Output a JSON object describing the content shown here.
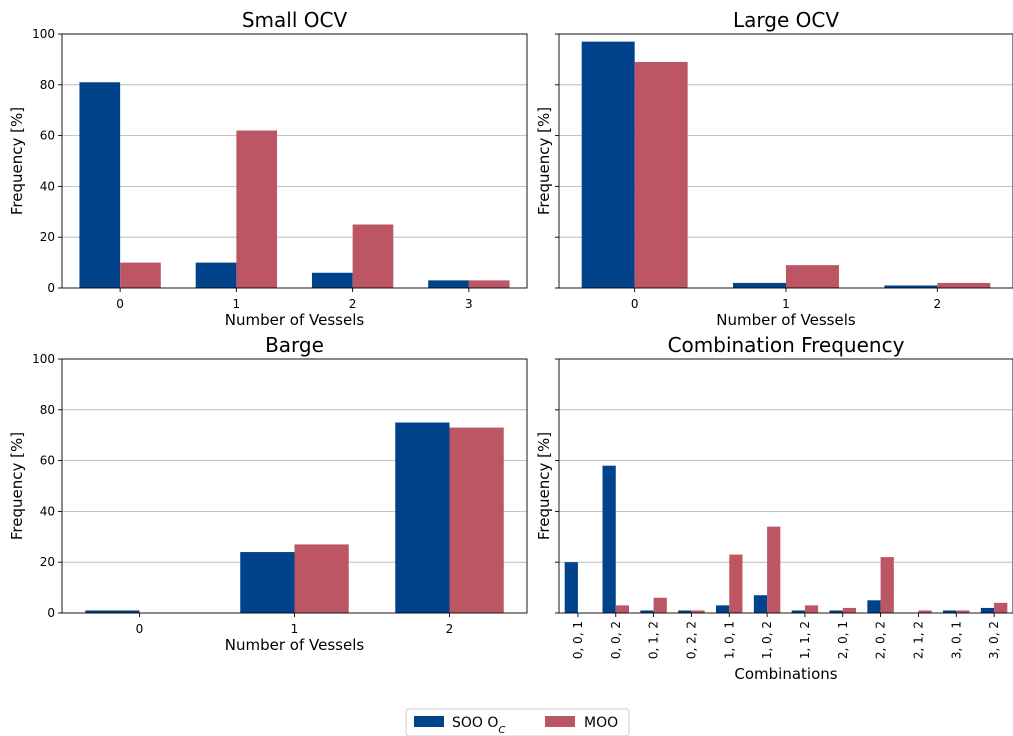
{
  "colors": {
    "soo": "#01438a",
    "moo": "#bd5664",
    "grid": "#b0b0b0",
    "axis": "#000000"
  },
  "legend": {
    "soo_label": "SOO O",
    "soo_subscript": "C",
    "moo_label": "MOO",
    "placement": "bottom-center"
  },
  "chart_data": [
    {
      "type": "bar",
      "title": "Small OCV",
      "xlabel": "Number of Vessels",
      "ylabel": "Frequency [%]",
      "ylim": [
        0,
        100
      ],
      "yticks": [
        "0",
        "20",
        "40",
        "60",
        "80",
        "100"
      ],
      "grid": "y",
      "categories": [
        "0",
        "1",
        "2",
        "3"
      ],
      "series": [
        {
          "name": "SOO O_C",
          "values": [
            81,
            10,
            6,
            3
          ]
        },
        {
          "name": "MOO",
          "values": [
            10,
            62,
            25,
            3
          ]
        }
      ]
    },
    {
      "type": "bar",
      "title": "Large OCV",
      "xlabel": "Number of Vessels",
      "ylabel": "Frequency [%]",
      "ylim": [
        0,
        100
      ],
      "yticks": [],
      "grid": "y",
      "categories": [
        "0",
        "1",
        "2"
      ],
      "series": [
        {
          "name": "SOO O_C",
          "values": [
            97,
            2,
            1
          ]
        },
        {
          "name": "MOO",
          "values": [
            89,
            9,
            2
          ]
        }
      ]
    },
    {
      "type": "bar",
      "title": "Barge",
      "xlabel": "Number of Vessels",
      "ylabel": "Frequency [%]",
      "ylim": [
        0,
        100
      ],
      "yticks": [
        "0",
        "20",
        "40",
        "60",
        "80",
        "100"
      ],
      "grid": "y",
      "categories": [
        "0",
        "1",
        "2"
      ],
      "series": [
        {
          "name": "SOO O_C",
          "values": [
            1,
            24,
            75
          ]
        },
        {
          "name": "MOO",
          "values": [
            0,
            27,
            73
          ]
        }
      ]
    },
    {
      "type": "bar",
      "title": "Combination Frequency",
      "xlabel": "Combinations",
      "ylabel": "Frequency [%]",
      "ylim": [
        0,
        100
      ],
      "yticks": [],
      "grid": "y",
      "categories": [
        "0, 0, 1",
        "0, 0, 2",
        "0, 1, 2",
        "0, 2, 2",
        "1, 0, 1",
        "1, 0, 2",
        "1, 1, 2",
        "2, 0, 1",
        "2, 0, 2",
        "2, 1, 2",
        "3, 0, 1",
        "3, 0, 2"
      ],
      "series": [
        {
          "name": "SOO O_C",
          "values": [
            20,
            58,
            1,
            1,
            3,
            7,
            1,
            1,
            5,
            0,
            1,
            2
          ]
        },
        {
          "name": "MOO",
          "values": [
            0,
            3,
            6,
            1,
            23,
            34,
            3,
            2,
            22,
            1,
            1,
            4
          ]
        }
      ]
    }
  ]
}
